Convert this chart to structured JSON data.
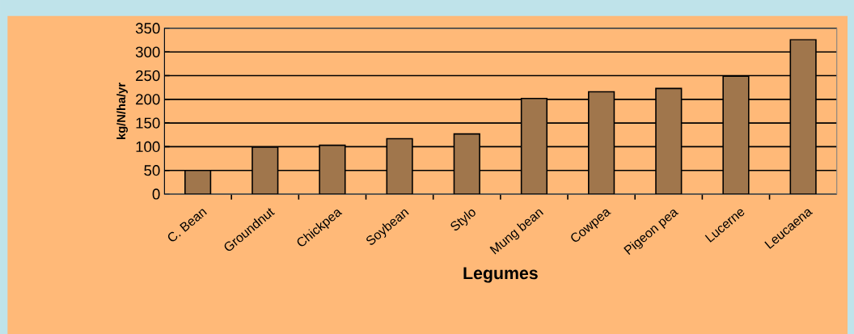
{
  "chart_data": {
    "type": "bar",
    "xlabel": "Legumes",
    "ylabel": "kg/N/ha/yr",
    "categories": [
      "C. Bean",
      "Groundnut",
      "Chickpea",
      "Soybean",
      "Stylo",
      "Mung bean",
      "Cowpea",
      "Pigeon pea",
      "Lucerne",
      "Leucaena"
    ],
    "values": [
      50,
      99,
      103,
      117,
      127,
      202,
      216,
      223,
      249,
      326
    ],
    "color": "#a0764c",
    "ylim": [
      0,
      350
    ],
    "yticks": [
      0,
      50,
      100,
      150,
      200,
      250,
      300,
      350
    ],
    "grid": "y"
  }
}
